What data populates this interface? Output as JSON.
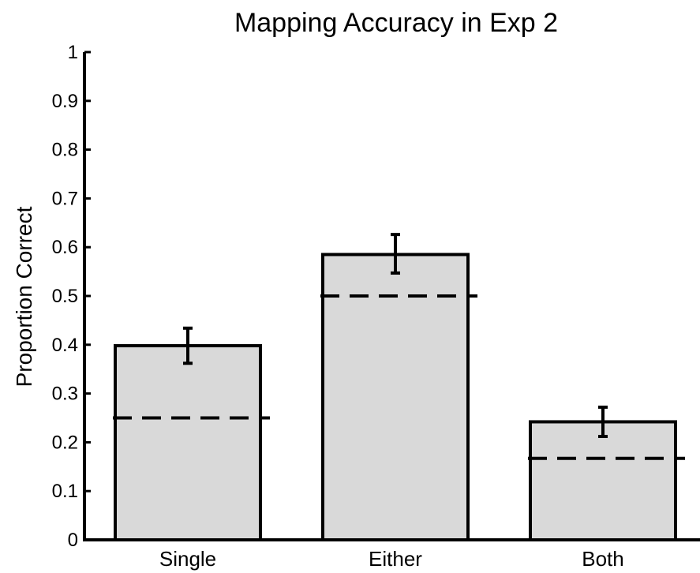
{
  "chart_data": {
    "type": "bar",
    "title": "Mapping Accuracy in Exp 2",
    "xlabel": "",
    "ylabel": "Proportion Correct",
    "categories": [
      "Single",
      "Either",
      "Both"
    ],
    "values": [
      0.398,
      0.585,
      0.242
    ],
    "error_bars": [
      {
        "low": 0.362,
        "high": 0.434
      },
      {
        "low": 0.547,
        "high": 0.626
      },
      {
        "low": 0.212,
        "high": 0.272
      }
    ],
    "reference_lines": [
      0.25,
      0.5,
      0.167
    ],
    "reference_line_style": "dashed",
    "ylim": [
      0,
      1
    ],
    "yticks": [
      "0",
      "0.1",
      "0.2",
      "0.3",
      "0.4",
      "0.5",
      "0.6",
      "0.7",
      "0.8",
      "0.9",
      "1"
    ],
    "grid": false,
    "legend": "none",
    "colors": {
      "bar_fill": "#d9d9d9",
      "bar_edge": "#000000",
      "axis": "#000000",
      "error_bar": "#000000",
      "reference_line": "#000000"
    }
  }
}
